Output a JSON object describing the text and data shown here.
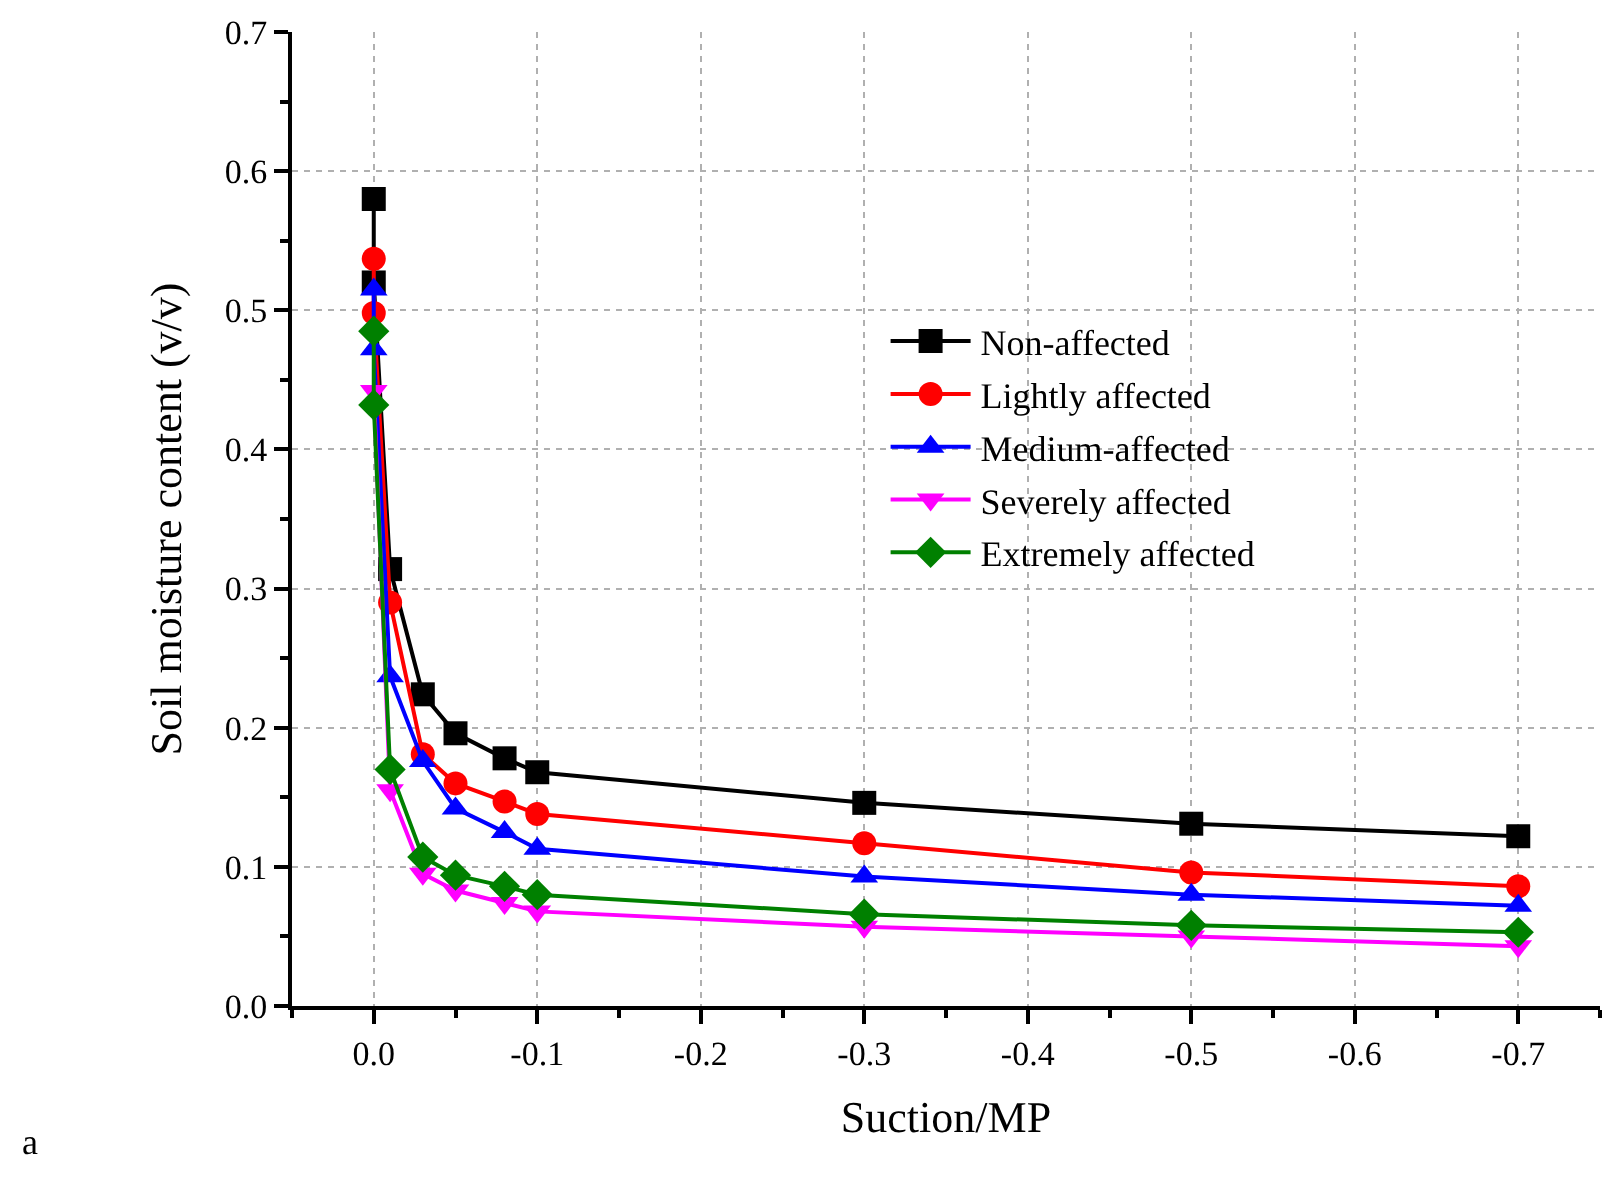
{
  "chart_data": {
    "type": "line",
    "xlabel": "Suction/MP",
    "ylabel": "Soil moisture content (v/v)",
    "x": [
      0,
      0,
      -0.01,
      -0.03,
      -0.05,
      -0.08,
      -0.1,
      -0.3,
      -0.5,
      -0.7
    ],
    "series": [
      {
        "name": "Non-affected",
        "color": "#000000",
        "marker": "square",
        "values": [
          0.58,
          0.52,
          0.314,
          0.224,
          0.196,
          0.178,
          0.168,
          0.146,
          0.131,
          0.122
        ]
      },
      {
        "name": "Lightly affected",
        "color": "#ff0000",
        "marker": "circle",
        "values": [
          0.537,
          0.498,
          0.29,
          0.181,
          0.16,
          0.147,
          0.138,
          0.117,
          0.096,
          0.086
        ]
      },
      {
        "name": "Medium-affected",
        "color": "#0000ff",
        "marker": "triangle",
        "values": [
          0.515,
          0.472,
          0.237,
          0.176,
          0.142,
          0.125,
          0.113,
          0.093,
          0.08,
          0.072
        ]
      },
      {
        "name": "Severely affected",
        "color": "#ff00ff",
        "marker": "triangle-down",
        "values": [
          null,
          0.442,
          0.155,
          0.095,
          0.083,
          0.074,
          0.068,
          0.057,
          0.05,
          0.043
        ]
      },
      {
        "name": "Extremely affected",
        "color": "#008000",
        "marker": "diamond",
        "values": [
          0.485,
          0.432,
          0.17,
          0.107,
          0.094,
          0.086,
          0.08,
          0.066,
          0.058,
          0.053
        ]
      }
    ],
    "xlim": [
      0.05,
      -0.75
    ],
    "xticks": [
      {
        "value": 0,
        "label": "0.0"
      },
      -0.1,
      -0.2,
      -0.3,
      -0.4,
      -0.5,
      -0.6,
      -0.7
    ],
    "ylim": [
      0,
      0.7
    ],
    "yticks": [
      {
        "value": 0,
        "label": "0.0"
      },
      0.1,
      0.2,
      0.3,
      0.4,
      0.5,
      0.6,
      0.7
    ],
    "grid": true,
    "legend": "right",
    "line_style": "solid",
    "annotations": [
      "a"
    ]
  }
}
